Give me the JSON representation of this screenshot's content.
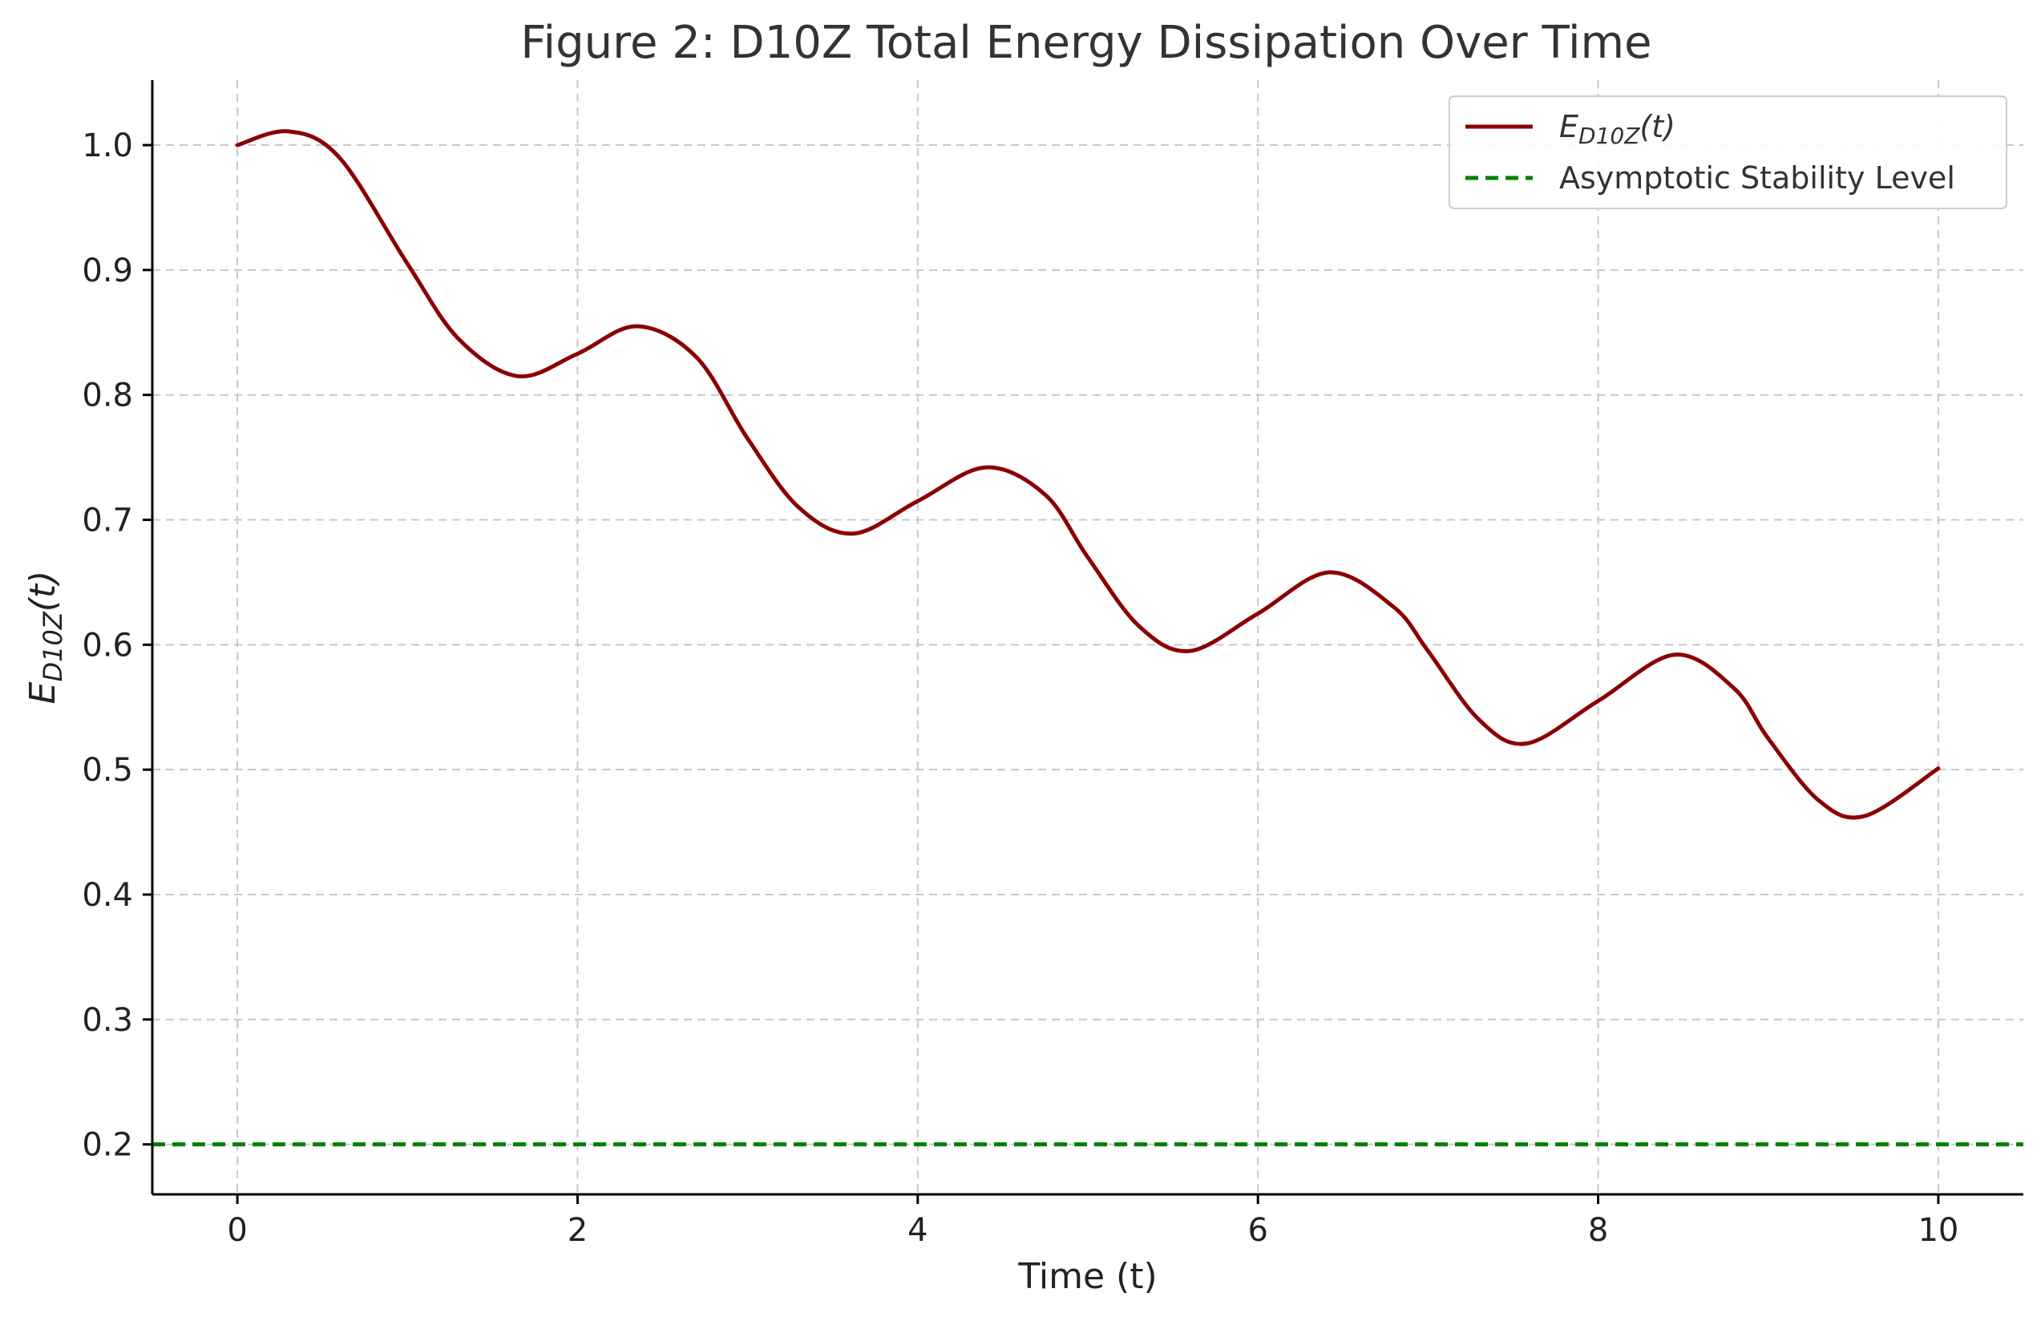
{
  "chart_data": {
    "type": "line",
    "title": "Figure 2: D10Z Total Energy Dissipation Over Time",
    "xlabel": "Time (t)",
    "ylabel": {
      "base": "E",
      "sub": "D10Z",
      "suffix": "(t)"
    },
    "xlim": [
      -0.5,
      10.5
    ],
    "ylim": [
      0.16,
      1.052
    ],
    "xticks": [
      0,
      2,
      4,
      6,
      8,
      10
    ],
    "yticks": [
      0.2,
      0.3,
      0.4,
      0.5,
      0.6,
      0.7,
      0.8,
      0.9,
      1.0
    ],
    "grid": true,
    "legend_position": "top-right",
    "series": [
      {
        "name": {
          "base": "E",
          "sub": "D10Z",
          "suffix": "(t)"
        },
        "style": "solid",
        "color": "#8b0000",
        "points": [
          [
            0.0,
            1.0
          ],
          [
            0.3,
            1.011
          ],
          [
            0.6,
            0.99
          ],
          [
            1.0,
            0.905
          ],
          [
            1.3,
            0.845
          ],
          [
            1.65,
            0.815
          ],
          [
            2.0,
            0.833
          ],
          [
            2.35,
            0.855
          ],
          [
            2.7,
            0.83
          ],
          [
            3.0,
            0.765
          ],
          [
            3.3,
            0.71
          ],
          [
            3.62,
            0.689
          ],
          [
            4.0,
            0.715
          ],
          [
            4.4,
            0.742
          ],
          [
            4.75,
            0.72
          ],
          [
            5.0,
            0.67
          ],
          [
            5.3,
            0.615
          ],
          [
            5.6,
            0.595
          ],
          [
            6.0,
            0.625
          ],
          [
            6.42,
            0.658
          ],
          [
            6.8,
            0.63
          ],
          [
            7.0,
            0.595
          ],
          [
            7.3,
            0.54
          ],
          [
            7.58,
            0.521
          ],
          [
            8.0,
            0.555
          ],
          [
            8.45,
            0.592
          ],
          [
            8.8,
            0.565
          ],
          [
            9.0,
            0.525
          ],
          [
            9.3,
            0.475
          ],
          [
            9.57,
            0.463
          ],
          [
            10.0,
            0.501
          ]
        ]
      },
      {
        "name": "Asymptotic Stability Level",
        "style": "dashed",
        "color": "#008000",
        "y": 0.2
      }
    ]
  }
}
